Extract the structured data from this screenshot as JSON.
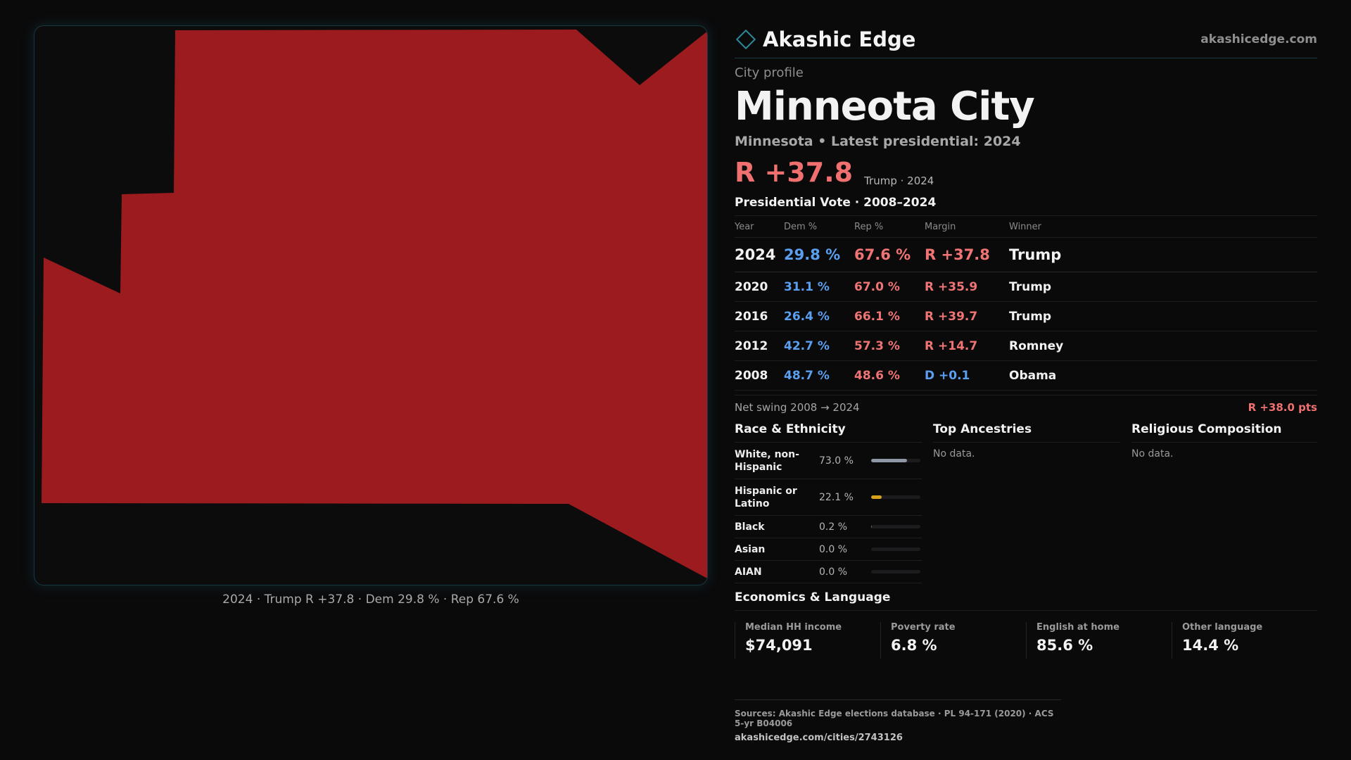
{
  "brand": {
    "name": "Akashic Edge",
    "url": "akashicedge.com"
  },
  "profile": {
    "eyebrow": "City profile",
    "title": "Minneota City",
    "subtitle": "Minnesota • Latest presidential: 2024",
    "headline_margin": "R +37.8",
    "headline_note": "Trump · 2024"
  },
  "map": {
    "fill_color": "#9b1b1e",
    "caption": "2024 · Trump R +37.8 · Dem 29.8 % · Rep 67.6 %"
  },
  "vote_table": {
    "title": "Presidential Vote · 2008–2024",
    "headers": {
      "year": "Year",
      "dem": "Dem %",
      "rep": "Rep %",
      "margin": "Margin",
      "winner": "Winner"
    },
    "rows": [
      {
        "year": "2024",
        "dem": "29.8 %",
        "rep": "67.6 %",
        "margin": "R +37.8",
        "winner": "Trump"
      },
      {
        "year": "2020",
        "dem": "31.1 %",
        "rep": "67.0 %",
        "margin": "R +35.9",
        "winner": "Trump"
      },
      {
        "year": "2016",
        "dem": "26.4 %",
        "rep": "66.1 %",
        "margin": "R +39.7",
        "winner": "Trump"
      },
      {
        "year": "2012",
        "dem": "42.7 %",
        "rep": "57.3 %",
        "margin": "R +14.7",
        "winner": "Romney"
      },
      {
        "year": "2008",
        "dem": "48.7 %",
        "rep": "48.6 %",
        "margin": "D +0.1",
        "winner": "Obama"
      }
    ]
  },
  "swing": {
    "label": "Net swing 2008 → 2024",
    "value": "R +38.0 pts"
  },
  "race": {
    "title": "Race & Ethnicity",
    "rows": [
      {
        "label": "White, non-Hispanic",
        "pct": "73.0 %",
        "value": 0.73,
        "color": "#8d97a6"
      },
      {
        "label": "Hispanic or Latino",
        "pct": "22.1 %",
        "value": 0.221,
        "color": "#d9a21b"
      },
      {
        "label": "Black",
        "pct": "0.2 %",
        "value": 0.002,
        "color": "#6b6b6b"
      },
      {
        "label": "Asian",
        "pct": "0.0 %",
        "value": 0.0,
        "color": "#6b6b6b"
      },
      {
        "label": "AIAN",
        "pct": "0.0 %",
        "value": 0.0,
        "color": "#6b6b6b"
      }
    ]
  },
  "ancestries": {
    "title": "Top Ancestries",
    "empty": "No data."
  },
  "religion": {
    "title": "Religious Composition",
    "empty": "No data."
  },
  "economics": {
    "title": "Economics & Language",
    "cells": [
      {
        "label": "Median HH income",
        "value": "$74,091"
      },
      {
        "label": "Poverty rate",
        "value": "6.8 %"
      },
      {
        "label": "English at home",
        "value": "85.6 %"
      },
      {
        "label": "Other language",
        "value": "14.4 %"
      }
    ]
  },
  "sources": {
    "line": "Sources: Akashic Edge elections database · PL 94-171 (2020) · ACS 5-yr B04006",
    "url": "akashicedge.com/cities/2743126"
  }
}
